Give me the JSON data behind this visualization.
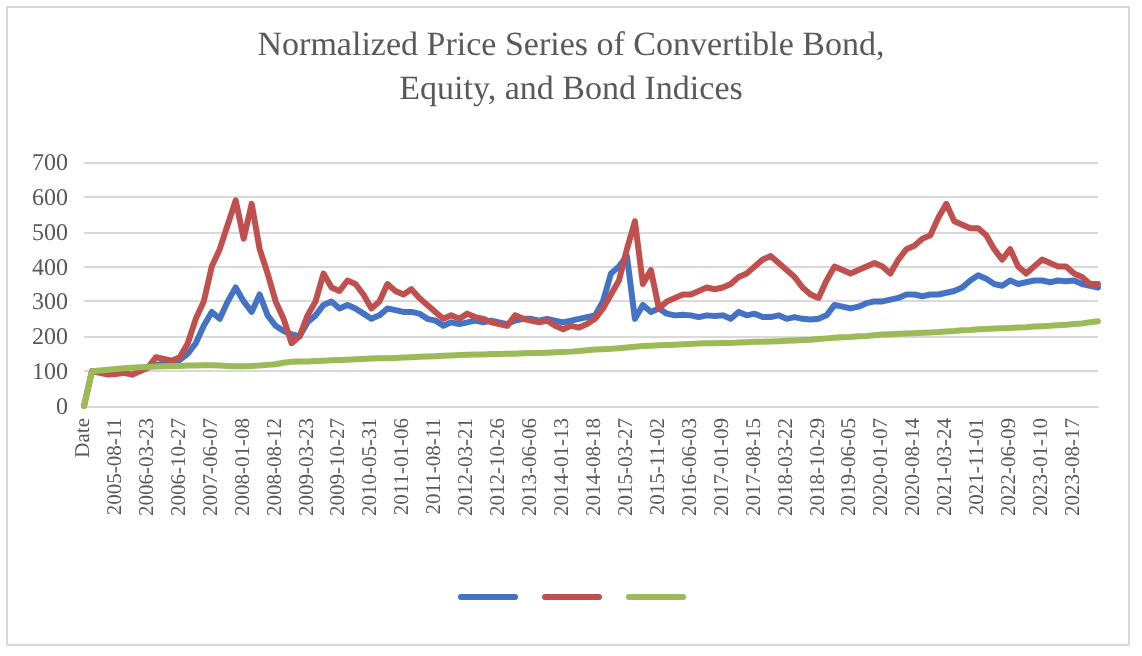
{
  "chart_data": {
    "type": "line",
    "title": "Normalized Price Series of Convertible Bond,\nEquity, and Bond Indices",
    "categories": [
      "Date",
      null,
      null,
      null,
      "2005-08-11",
      null,
      null,
      null,
      "2006-03-23",
      null,
      null,
      null,
      "2006-10-27",
      null,
      null,
      null,
      "2007-06-07",
      null,
      null,
      null,
      "2008-01-08",
      null,
      null,
      null,
      "2008-08-12",
      null,
      null,
      null,
      "2009-03-23",
      null,
      null,
      null,
      "2009-10-27",
      null,
      null,
      null,
      "2010-05-31",
      null,
      null,
      null,
      "2011-01-06",
      null,
      null,
      null,
      "2011-08-11",
      null,
      null,
      null,
      "2012-03-21",
      null,
      null,
      null,
      "2012-10-26",
      null,
      null,
      null,
      "2013-06-06",
      null,
      null,
      null,
      "2014-01-13",
      null,
      null,
      null,
      "2014-08-18",
      null,
      null,
      null,
      "2015-03-27",
      null,
      null,
      null,
      "2015-11-02",
      null,
      null,
      null,
      "2016-06-03",
      null,
      null,
      null,
      "2017-01-09",
      null,
      null,
      null,
      "2017-08-15",
      null,
      null,
      null,
      "2018-03-22",
      null,
      null,
      null,
      "2018-10-29",
      null,
      null,
      null,
      "2019-06-05",
      null,
      null,
      null,
      "2020-01-07",
      null,
      null,
      null,
      "2020-08-14",
      null,
      null,
      null,
      "2021-03-24",
      null,
      null,
      null,
      "2021-11-01",
      null,
      null,
      null,
      "2022-06-09",
      null,
      null,
      null,
      "2023-01-10",
      null,
      null,
      null,
      "2023-08-17",
      null,
      null,
      null
    ],
    "series": [
      {
        "color": "#4472c4",
        "values": [
          null,
          null,
          null,
          null,
          null,
          null,
          null,
          108,
          112,
          118,
          122,
          128,
          132,
          150,
          180,
          230,
          270,
          250,
          300,
          340,
          300,
          270,
          320,
          260,
          230,
          215,
          205,
          200,
          240,
          260,
          290,
          300,
          280,
          290,
          280,
          265,
          250,
          260,
          280,
          275,
          270,
          270,
          265,
          250,
          245,
          230,
          240,
          235,
          240,
          245,
          240,
          245,
          240,
          235,
          245,
          250,
          250,
          245,
          250,
          245,
          240,
          245,
          250,
          255,
          260,
          300,
          380,
          400,
          430,
          250,
          290,
          270,
          280,
          265,
          260,
          262,
          260,
          255,
          260,
          258,
          260,
          250,
          270,
          260,
          265,
          255,
          255,
          260,
          250,
          255,
          250,
          248,
          250,
          260,
          290,
          285,
          280,
          285,
          295,
          300,
          300,
          305,
          310,
          320,
          320,
          315,
          320,
          320,
          325,
          330,
          340,
          360,
          375,
          365,
          350,
          345,
          360,
          350,
          355,
          360,
          360,
          355,
          360,
          358,
          360,
          350,
          345,
          340
        ]
      },
      {
        "color": "#c0504d",
        "values": [
          0,
          100,
          95,
          90,
          92,
          95,
          90,
          100,
          110,
          140,
          135,
          130,
          140,
          180,
          250,
          300,
          400,
          450,
          520,
          590,
          480,
          580,
          450,
          380,
          300,
          250,
          180,
          200,
          260,
          300,
          380,
          340,
          330,
          360,
          350,
          320,
          280,
          300,
          350,
          330,
          320,
          335,
          310,
          290,
          270,
          250,
          260,
          250,
          265,
          255,
          250,
          240,
          235,
          230,
          260,
          250,
          245,
          240,
          245,
          230,
          220,
          230,
          225,
          235,
          250,
          280,
          320,
          360,
          450,
          530,
          350,
          390,
          280,
          300,
          310,
          320,
          320,
          330,
          340,
          335,
          340,
          350,
          370,
          380,
          400,
          420,
          430,
          410,
          390,
          370,
          340,
          320,
          310,
          360,
          400,
          390,
          380,
          390,
          400,
          410,
          400,
          380,
          420,
          450,
          460,
          480,
          490,
          540,
          580,
          530,
          520,
          510,
          510,
          490,
          450,
          420,
          450,
          400,
          380,
          400,
          420,
          410,
          400,
          400,
          380,
          370,
          350,
          350
        ]
      },
      {
        "color": "#9bbb59",
        "values": [
          0,
          100,
          102,
          104,
          106,
          108,
          110,
          111,
          112,
          113,
          114,
          115,
          115,
          116,
          116,
          117,
          117,
          116,
          115,
          114,
          114,
          115,
          116,
          118,
          120,
          124,
          127,
          128,
          128,
          129,
          130,
          131,
          132,
          133,
          134,
          135,
          136,
          137,
          137,
          138,
          139,
          140,
          141,
          142,
          143,
          144,
          145,
          146,
          147,
          148,
          148,
          149,
          149,
          150,
          150,
          151,
          152,
          152,
          153,
          154,
          155,
          156,
          158,
          160,
          162,
          163,
          164,
          166,
          168,
          170,
          172,
          173,
          174,
          175,
          176,
          177,
          178,
          179,
          180,
          180,
          181,
          181,
          182,
          183,
          184,
          184,
          185,
          186,
          187,
          188,
          189,
          190,
          192,
          194,
          196,
          197,
          198,
          200,
          201,
          203,
          205,
          206,
          207,
          208,
          209,
          210,
          211,
          212,
          214,
          215,
          217,
          218,
          220,
          221,
          222,
          223,
          224,
          225,
          226,
          228,
          229,
          230,
          232,
          233,
          235,
          237,
          240,
          243
        ]
      }
    ],
    "ylim": [
      0,
      700
    ],
    "yticks": [
      0,
      100,
      200,
      300,
      400,
      500,
      600,
      700
    ],
    "grid": "y",
    "marker": "none",
    "line_style": "solid"
  }
}
